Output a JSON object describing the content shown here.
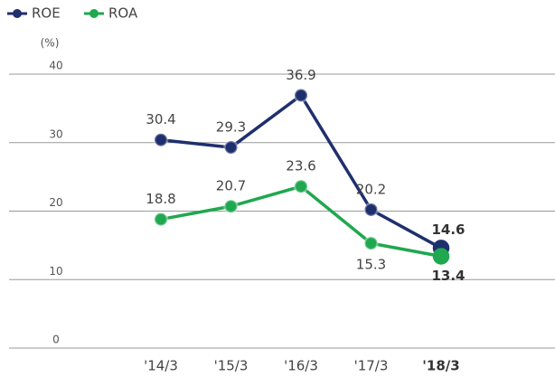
{
  "chart_data": {
    "type": "line",
    "y_label": "(%)",
    "categories": [
      "'14/3",
      "'15/3",
      "'16/3",
      "'17/3",
      "'18/3"
    ],
    "series": [
      {
        "name": "ROE",
        "color": "#1f2f6e",
        "values": [
          30.4,
          29.3,
          36.9,
          20.2,
          14.6
        ]
      },
      {
        "name": "ROA",
        "color": "#1fa84f",
        "values": [
          18.8,
          20.7,
          23.6,
          15.3,
          13.4
        ]
      }
    ],
    "ylim": [
      0,
      40
    ],
    "yticks": [
      0,
      10,
      20,
      30,
      40
    ],
    "grid": true,
    "legend": "top-left"
  }
}
